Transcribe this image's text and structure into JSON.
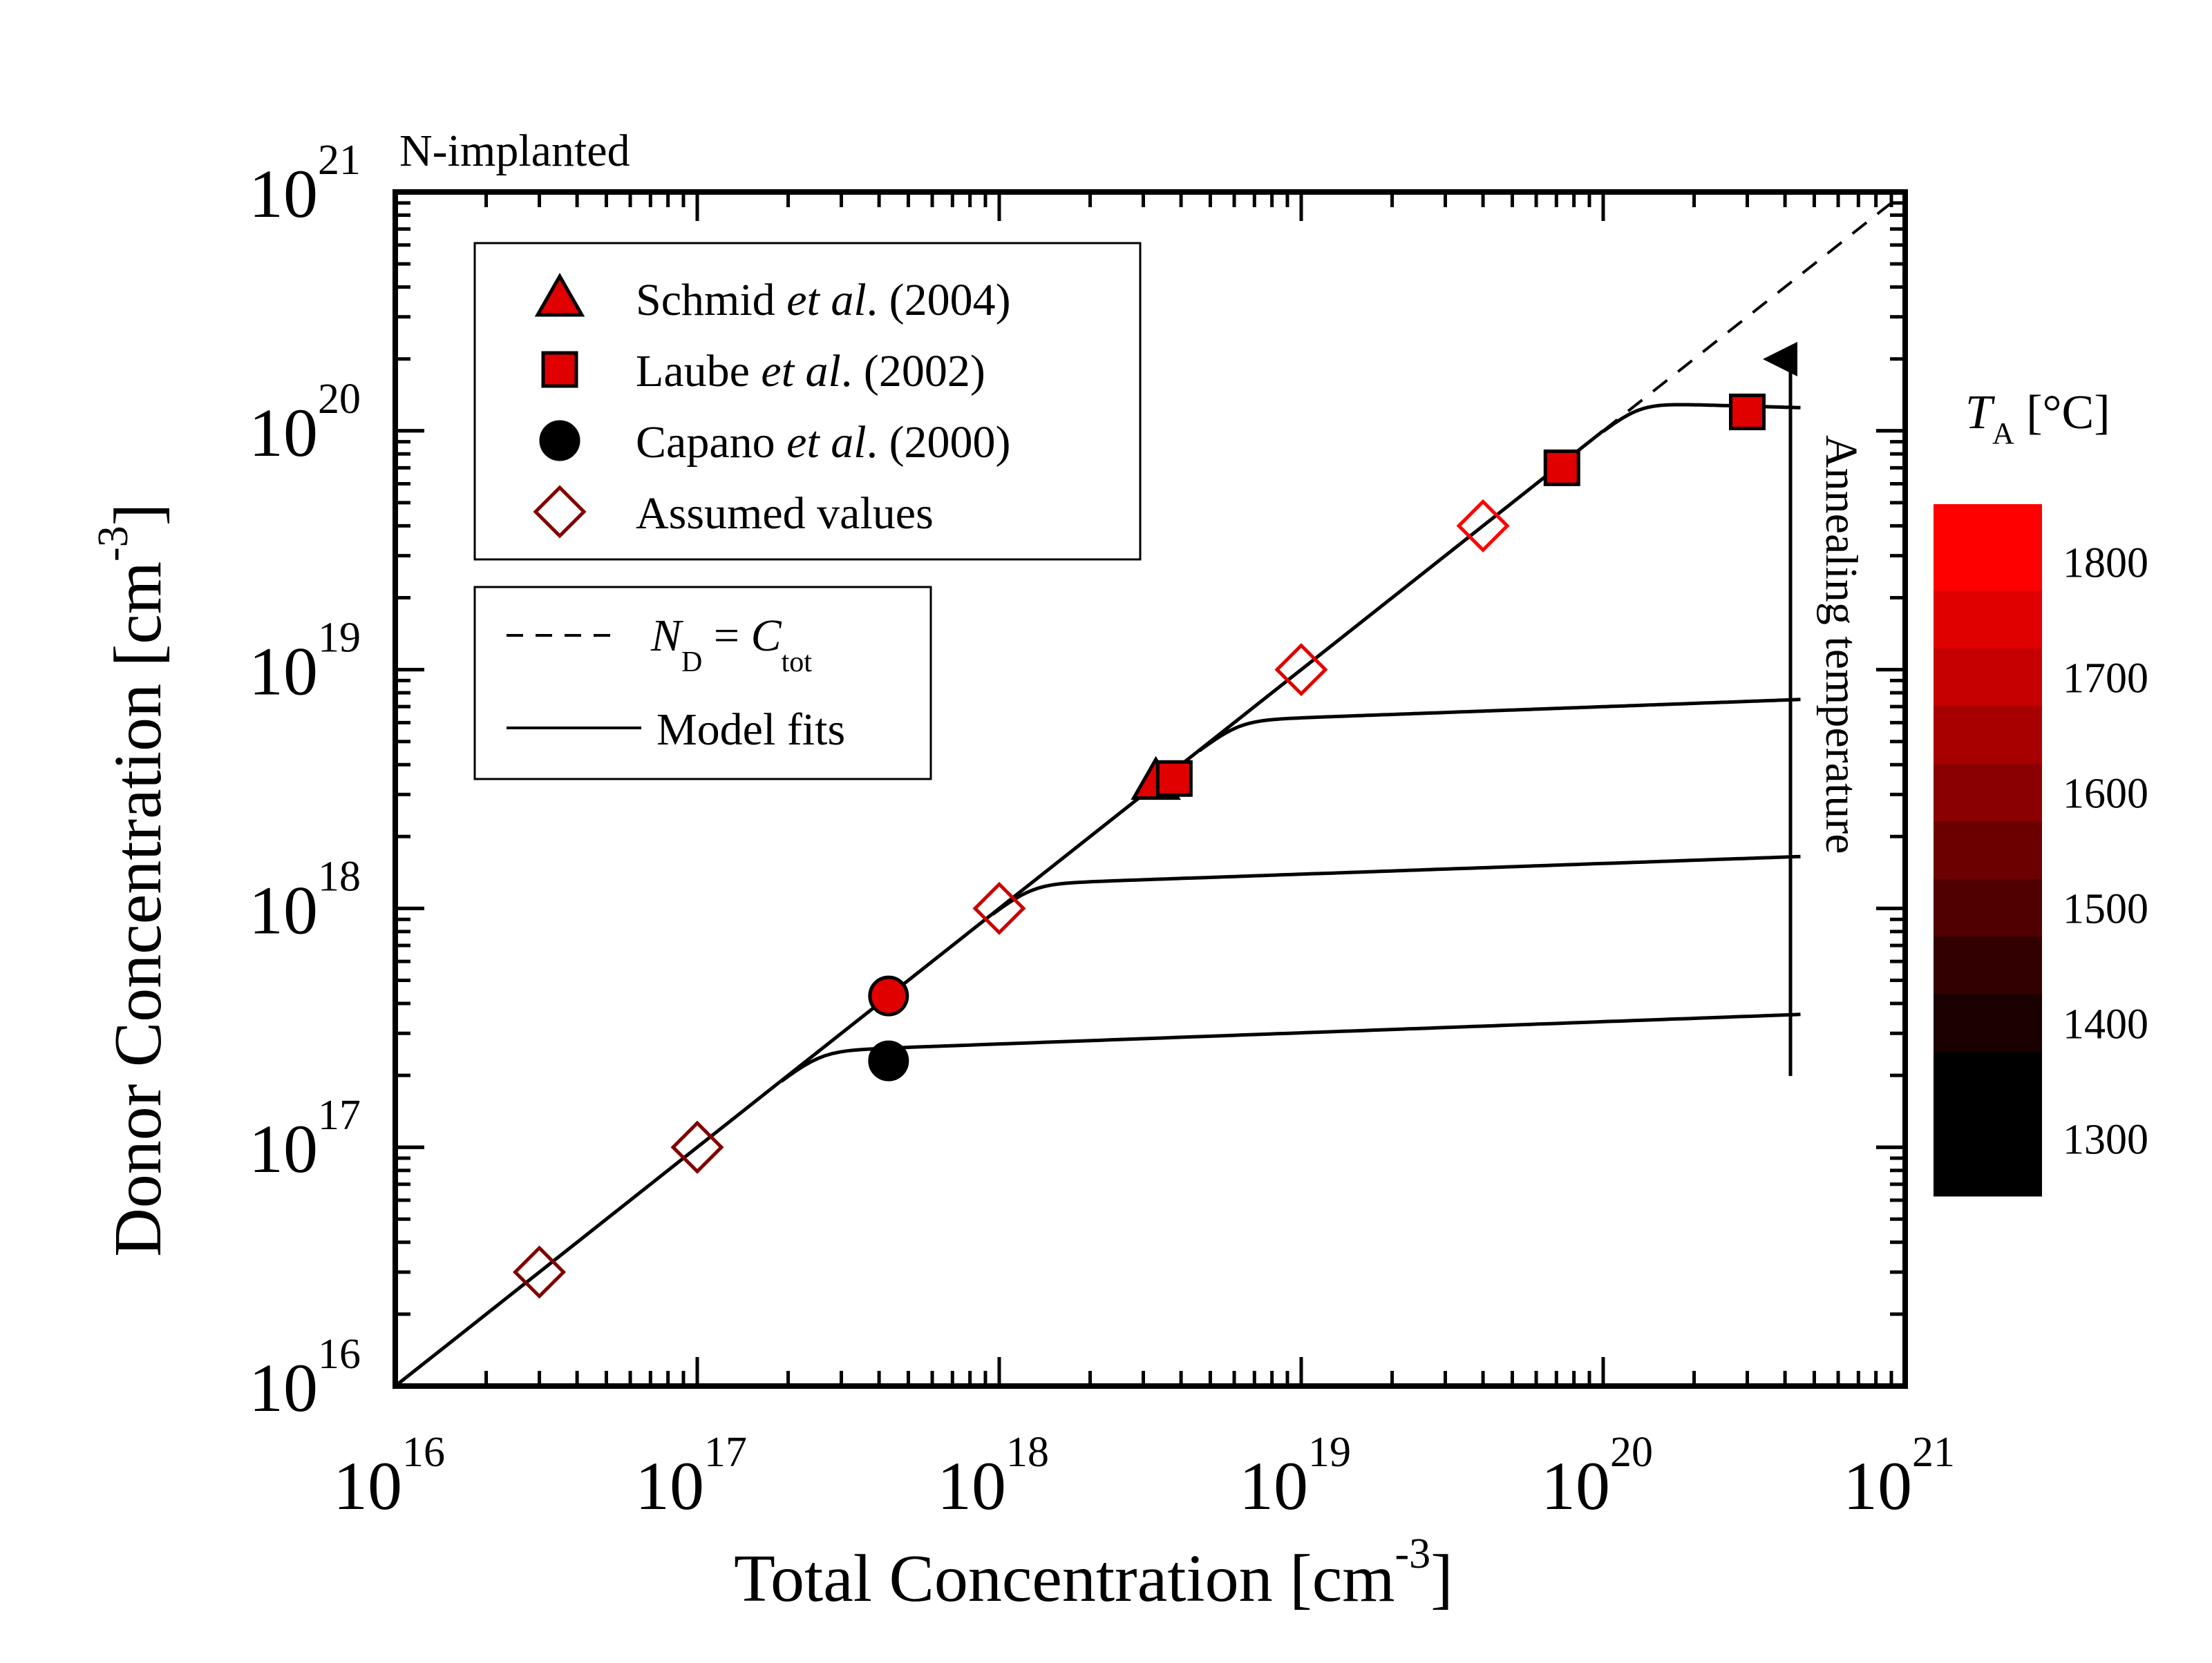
{
  "chart_data": {
    "type": "scatter",
    "title": "N-implanted",
    "xlabel": "Total Concentration [cm",
    "xlabel_sup": "-3",
    "xlabel_end": "]",
    "ylabel": "Donor Concentration [cm",
    "ylabel_sup": "-3",
    "ylabel_end": "]",
    "xscale": "log",
    "yscale": "log",
    "xlim": [
      1e+16,
      1e+21
    ],
    "ylim": [
      1e+16,
      1e+21
    ],
    "x_ticks": [
      {
        "base": "10",
        "exp": "16"
      },
      {
        "base": "10",
        "exp": "17"
      },
      {
        "base": "10",
        "exp": "18"
      },
      {
        "base": "10",
        "exp": "19"
      },
      {
        "base": "10",
        "exp": "20"
      },
      {
        "base": "10",
        "exp": "21"
      }
    ],
    "y_ticks": [
      {
        "base": "10",
        "exp": "16"
      },
      {
        "base": "10",
        "exp": "17"
      },
      {
        "base": "10",
        "exp": "18"
      },
      {
        "base": "10",
        "exp": "19"
      },
      {
        "base": "10",
        "exp": "20"
      },
      {
        "base": "10",
        "exp": "21"
      }
    ],
    "grid": false,
    "series": [
      {
        "name": "Schmid et al. (2004)",
        "label_pre": "Schmid ",
        "label_it": "et al",
        "label_post": ". (2004)",
        "marker": "triangle",
        "points": [
          {
            "x": 3.3e+18,
            "y": 3.4e+18,
            "color": "#e00000"
          }
        ]
      },
      {
        "name": "Laube et al. (2002)",
        "label_pre": "Laube ",
        "label_it": "et al",
        "label_post": ". (2002)",
        "marker": "square",
        "points": [
          {
            "x": 3.8e+18,
            "y": 3.5e+18,
            "color": "#e00000"
          },
          {
            "x": 7.3e+19,
            "y": 7e+19,
            "color": "#e00000"
          },
          {
            "x": 3e+20,
            "y": 1.2e+20,
            "color": "#e00000"
          }
        ]
      },
      {
        "name": "Capano et al. (2000)",
        "label_pre": "Capano ",
        "label_it": "et al",
        "label_post": ". (2000)",
        "marker": "circle",
        "points": [
          {
            "x": 4.3e+17,
            "y": 4.3e+17,
            "color": "#e00000"
          },
          {
            "x": 4.3e+17,
            "y": 2.3e+17,
            "color": "#000000"
          }
        ]
      },
      {
        "name": "Assumed values",
        "label_pre": "Assumed values",
        "label_it": "",
        "label_post": "",
        "marker": "diamond-open",
        "points": [
          {
            "x": 3e+16,
            "y": 3e+16,
            "color": "#800000"
          },
          {
            "x": 1e+17,
            "y": 1e+17,
            "color": "#800000"
          },
          {
            "x": 1e+18,
            "y": 1e+18,
            "color": "#cc0000"
          },
          {
            "x": 1e+19,
            "y": 1e+19,
            "color": "#e00000"
          },
          {
            "x": 4e+19,
            "y": 4e+19,
            "color": "#ff0000"
          }
        ]
      }
    ],
    "lines": [
      {
        "name": "N_D = C_tot",
        "style": "dashed",
        "x_from": 1e+20,
        "x_to": 1e+21
      },
      {
        "name": "Model fits",
        "style": "solid",
        "diagonal_from": 1e+16,
        "diagonal_to": 1e+20,
        "plateaus": [
          {
            "knee": 1.9e+17,
            "end_x": 4.5e+20,
            "end_y": 3.6e+17
          },
          {
            "knee": 9.5e+17,
            "end_x": 4.5e+20,
            "end_y": 1.65e+18
          },
          {
            "knee": 4.6e+18,
            "end_x": 4.5e+20,
            "end_y": 7.5e+18
          },
          {
            "knee": 1e+20,
            "end_x": 4.5e+20,
            "end_y": 1.25e+20
          }
        ]
      }
    ],
    "legend_markers": {
      "entries": [
        "Schmid et al. (2004)",
        "Laube et al. (2002)",
        "Capano et al. (2000)",
        "Assumed values"
      ],
      "placement": "top-left"
    },
    "legend_lines": {
      "dashed_label": {
        "N": "N",
        "N_sub": "D",
        "eq": " = ",
        "C": "C",
        "C_sub": "tot"
      },
      "solid_label": "Model fits",
      "placement": "upper-left"
    },
    "annotation": "Annealing temperature",
    "colorbar": {
      "label": "T",
      "label_sub": "A",
      "label_unit": " [°C]",
      "ticks": [
        "1800",
        "1700",
        "1600",
        "1500",
        "1400",
        "1300"
      ],
      "bands": [
        "#ff0000",
        "#e10000",
        "#c60000",
        "#a80000",
        "#8a0000",
        "#6c0000",
        "#500000",
        "#330000",
        "#1a0000",
        "#000000"
      ],
      "range": [
        1250,
        1850
      ]
    }
  }
}
